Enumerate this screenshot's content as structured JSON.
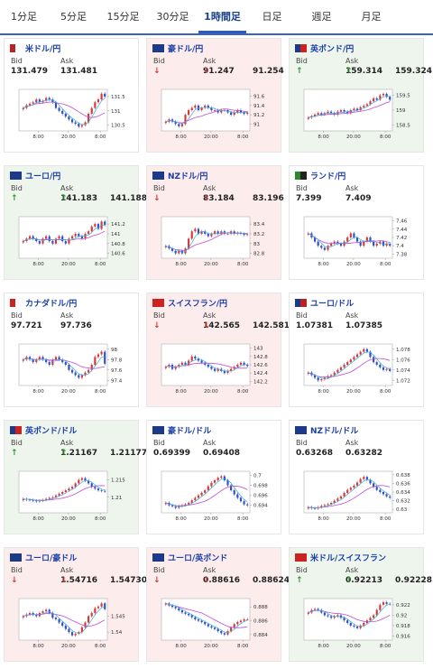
{
  "tabs": [
    {
      "label": "1分足",
      "active": false
    },
    {
      "label": "5分足",
      "active": false
    },
    {
      "label": "15分足",
      "active": false
    },
    {
      "label": "30分足",
      "active": false
    },
    {
      "label": "1時間足",
      "active": true
    },
    {
      "label": "日足",
      "active": false
    },
    {
      "label": "週足",
      "active": false
    },
    {
      "label": "月足",
      "active": false
    }
  ],
  "labels": {
    "bid": "Bid",
    "ask": "Ask"
  },
  "colors": {
    "up": "#2a9a2a",
    "down": "#d23a3a",
    "up_bg": "#eef5ec",
    "down_bg": "#fdecec",
    "link": "#1a3fa8",
    "ma": "#c04ad6",
    "ema": "#3aaed8",
    "bull": "#d23a3a",
    "bear": "#2f4fc9"
  },
  "pairs": [
    {
      "name": "米ドル/円",
      "bid": "131.479",
      "ask": "131.481",
      "dir": "flat",
      "flags": [
        "#b22",
        "#fff"
      ],
      "chart_data": {
        "type": "candlestick",
        "ticks": [
          "131.5",
          "131",
          "130.5"
        ],
        "ylim": [
          130.3,
          131.75
        ],
        "xticks": [
          "8:00",
          "20:00",
          "8:00"
        ],
        "closes": [
          131.1,
          131.2,
          131.25,
          131.3,
          131.4,
          131.3,
          131.35,
          131.45,
          131.4,
          131.3,
          131.1,
          131.0,
          130.9,
          130.8,
          130.7,
          130.6,
          130.55,
          130.45,
          130.5,
          130.6,
          130.9,
          131.1,
          131.3,
          131.4,
          131.6,
          131.5
        ]
      }
    },
    {
      "name": "豪ドル/円",
      "bid": "91.247",
      "ask": "91.254",
      "dir": "down",
      "flags": [
        "#1b3a8a",
        "#1b3a8a"
      ],
      "chart_data": {
        "type": "candlestick",
        "ticks": [
          "91.6",
          "91.4",
          "91.2",
          "91"
        ],
        "ylim": [
          90.85,
          91.75
        ],
        "xticks": [
          "8:00",
          "20:00",
          "8:00"
        ],
        "closes": [
          91.05,
          91.1,
          91.05,
          91.0,
          90.95,
          91.0,
          91.2,
          91.3,
          91.35,
          91.4,
          91.3,
          91.35,
          91.4,
          91.35,
          91.3,
          91.3,
          91.25,
          91.3,
          91.3,
          91.25,
          91.2,
          91.25,
          91.3,
          91.25,
          91.22,
          91.25
        ]
      }
    },
    {
      "name": "英ポンド/円",
      "bid": "159.314",
      "ask": "159.324",
      "dir": "up",
      "flags": [
        "#1b3a8a",
        "#c22"
      ],
      "chart_data": {
        "type": "candlestick",
        "ticks": [
          "159.5",
          "159",
          "158.5"
        ],
        "ylim": [
          158.3,
          159.7
        ],
        "xticks": [
          "8:00",
          "20:00",
          "8:00"
        ],
        "closes": [
          158.75,
          158.8,
          158.85,
          158.9,
          158.85,
          158.9,
          158.95,
          158.9,
          158.85,
          158.95,
          159.0,
          158.95,
          158.9,
          159.0,
          159.05,
          159.0,
          159.1,
          159.15,
          159.2,
          159.3,
          159.4,
          159.35,
          159.5,
          159.55,
          159.45,
          159.35
        ]
      }
    },
    {
      "name": "ユーロ/円",
      "bid": "141.183",
      "ask": "141.188",
      "dir": "up",
      "flags": [
        "#1b3a8a",
        "#1b3a8a"
      ],
      "chart_data": {
        "type": "candlestick",
        "ticks": [
          "141.2",
          "141",
          "140.8",
          "140.6"
        ],
        "ylim": [
          140.5,
          141.35
        ],
        "xticks": [
          "8:00",
          "20:00",
          "8:00"
        ],
        "closes": [
          140.85,
          140.9,
          140.95,
          140.9,
          140.85,
          140.8,
          140.9,
          140.95,
          140.85,
          140.8,
          140.9,
          140.95,
          140.85,
          140.8,
          140.9,
          140.95,
          141.0,
          140.95,
          140.9,
          141.0,
          141.05,
          141.15,
          141.2,
          141.1,
          141.25,
          141.18
        ]
      }
    },
    {
      "name": "NZドル/円",
      "bid": "83.184",
      "ask": "83.196",
      "dir": "down",
      "flags": [
        "#1b3a8a",
        "#1b3a8a"
      ],
      "chart_data": {
        "type": "candlestick",
        "ticks": [
          "83.4",
          "83.2",
          "83",
          "82.8"
        ],
        "ylim": [
          82.7,
          83.55
        ],
        "xticks": [
          "8:00",
          "20:00",
          "8:00"
        ],
        "closes": [
          82.95,
          82.9,
          82.85,
          82.8,
          82.85,
          82.8,
          82.9,
          83.1,
          83.25,
          83.3,
          83.2,
          83.25,
          83.2,
          83.15,
          83.2,
          83.25,
          83.2,
          83.25,
          83.2,
          83.2,
          83.25,
          83.2,
          83.22,
          83.2,
          83.18,
          83.19
        ]
      }
    },
    {
      "name": "ランド/円",
      "bid": "7.399",
      "ask": "7.409",
      "dir": "flat",
      "flags": [
        "#2a8a2a",
        "#222"
      ],
      "chart_data": {
        "type": "candlestick",
        "ticks": [
          "7.46",
          "7.44",
          "7.42",
          "7.4",
          "7.38"
        ],
        "ylim": [
          7.37,
          7.47
        ],
        "xticks": [
          "8:00",
          "20:00",
          "8:00"
        ],
        "closes": [
          7.43,
          7.42,
          7.41,
          7.4,
          7.395,
          7.39,
          7.4,
          7.405,
          7.41,
          7.405,
          7.4,
          7.41,
          7.42,
          7.43,
          7.42,
          7.41,
          7.4,
          7.41,
          7.42,
          7.41,
          7.4,
          7.405,
          7.41,
          7.4,
          7.405,
          7.4
        ]
      }
    },
    {
      "name": "カナダドル/円",
      "bid": "97.721",
      "ask": "97.736",
      "dir": "flat",
      "flags": [
        "#c22",
        "#fff"
      ],
      "chart_data": {
        "type": "candlestick",
        "ticks": [
          "98",
          "97.8",
          "97.6",
          "97.4"
        ],
        "ylim": [
          97.3,
          98.1
        ],
        "xticks": [
          "8:00",
          "20:00",
          "8:00"
        ],
        "closes": [
          97.8,
          97.85,
          97.8,
          97.75,
          97.8,
          97.85,
          97.8,
          97.75,
          97.7,
          97.8,
          97.85,
          97.8,
          97.75,
          97.7,
          97.6,
          97.55,
          97.5,
          97.45,
          97.5,
          97.55,
          97.6,
          97.7,
          97.85,
          97.9,
          97.95,
          97.72
        ]
      }
    },
    {
      "name": "スイスフラン/円",
      "bid": "142.565",
      "ask": "142.581",
      "dir": "down",
      "flags": [
        "#c22",
        "#c22"
      ],
      "chart_data": {
        "type": "candlestick",
        "ticks": [
          "143",
          "142.8",
          "142.6",
          "142.4",
          "142.2"
        ],
        "ylim": [
          142.1,
          143.1
        ],
        "xticks": [
          "8:00",
          "20:00",
          "8:00"
        ],
        "closes": [
          142.55,
          142.6,
          142.5,
          142.55,
          142.6,
          142.65,
          142.6,
          142.7,
          142.8,
          142.75,
          142.7,
          142.65,
          142.6,
          142.55,
          142.5,
          142.45,
          142.5,
          142.45,
          142.4,
          142.45,
          142.5,
          142.55,
          142.6,
          142.65,
          142.6,
          142.57
        ]
      }
    },
    {
      "name": "ユーロ/ドル",
      "bid": "1.07381",
      "ask": "1.07385",
      "dir": "flat",
      "flags": [
        "#1b3a8a",
        "#b22"
      ],
      "chart_data": {
        "type": "candlestick",
        "ticks": [
          "1.078",
          "1.076",
          "1.074",
          "1.072"
        ],
        "ylim": [
          1.071,
          1.079
        ],
        "xticks": [
          "8:00",
          "20:00",
          "8:00"
        ],
        "closes": [
          1.0735,
          1.073,
          1.0725,
          1.072,
          1.0722,
          1.0725,
          1.0728,
          1.073,
          1.0735,
          1.074,
          1.0745,
          1.075,
          1.0755,
          1.076,
          1.0765,
          1.077,
          1.0775,
          1.078,
          1.0775,
          1.0765,
          1.0755,
          1.075,
          1.0745,
          1.074,
          1.0742,
          1.0738
        ]
      }
    },
    {
      "name": "英ポンド/ドル",
      "bid": "1.21167",
      "ask": "1.21177",
      "dir": "up",
      "flags": [
        "#1b3a8a",
        "#c22"
      ],
      "chart_data": {
        "type": "candlestick",
        "ticks": [
          "1.215",
          "1.21"
        ],
        "ylim": [
          1.2055,
          1.2175
        ],
        "xticks": [
          "8:00",
          "20:00",
          "8:00"
        ],
        "closes": [
          1.2095,
          1.2093,
          1.2092,
          1.209,
          1.2088,
          1.209,
          1.2092,
          1.2095,
          1.2098,
          1.21,
          1.2105,
          1.211,
          1.2115,
          1.212,
          1.2125,
          1.213,
          1.214,
          1.215,
          1.2155,
          1.2148,
          1.214,
          1.213,
          1.2125,
          1.212,
          1.2118,
          1.2117
        ]
      }
    },
    {
      "name": "豪ドル/ドル",
      "bid": "0.69399",
      "ask": "0.69408",
      "dir": "flat",
      "flags": [
        "#1b3a8a",
        "#1b3a8a"
      ],
      "chart_data": {
        "type": "candlestick",
        "ticks": [
          "0.7",
          "0.698",
          "0.696",
          "0.694"
        ],
        "ylim": [
          0.6925,
          0.7008
        ],
        "xticks": [
          "8:00",
          "20:00",
          "8:00"
        ],
        "closes": [
          0.6945,
          0.694,
          0.6938,
          0.6935,
          0.6938,
          0.694,
          0.6942,
          0.6945,
          0.695,
          0.6955,
          0.696,
          0.6965,
          0.697,
          0.6978,
          0.6985,
          0.699,
          0.6995,
          0.6998,
          0.699,
          0.698,
          0.697,
          0.6962,
          0.6955,
          0.6948,
          0.6942,
          0.694
        ]
      }
    },
    {
      "name": "NZドル/ドル",
      "bid": "0.63268",
      "ask": "0.63282",
      "dir": "flat",
      "flags": [
        "#1b3a8a",
        "#1b3a8a"
      ],
      "chart_data": {
        "type": "candlestick",
        "ticks": [
          "0.638",
          "0.636",
          "0.634",
          "0.632",
          "0.63"
        ],
        "ylim": [
          0.6292,
          0.6388
        ],
        "xticks": [
          "8:00",
          "20:00",
          "8:00"
        ],
        "closes": [
          0.6305,
          0.6303,
          0.6302,
          0.6305,
          0.6308,
          0.631,
          0.6312,
          0.6315,
          0.632,
          0.6325,
          0.633,
          0.6338,
          0.6345,
          0.635,
          0.6355,
          0.6362,
          0.637,
          0.6375,
          0.6368,
          0.636,
          0.6352,
          0.6345,
          0.634,
          0.6335,
          0.633,
          0.6327
        ]
      }
    },
    {
      "name": "ユーロ/豪ドル",
      "bid": "1.54716",
      "ask": "1.54730",
      "dir": "down",
      "flags": [
        "#1b3a8a",
        "#1b3a8a"
      ],
      "chart_data": {
        "type": "candlestick",
        "ticks": [
          "1.545",
          "1.54"
        ],
        "ylim": [
          1.5375,
          1.5505
        ],
        "xticks": [
          "8:00",
          "20:00",
          "8:00"
        ],
        "closes": [
          1.545,
          1.5455,
          1.546,
          1.5455,
          1.545,
          1.546,
          1.5465,
          1.547,
          1.546,
          1.5445,
          1.544,
          1.543,
          1.542,
          1.541,
          1.54,
          1.539,
          1.5395,
          1.54,
          1.5415,
          1.543,
          1.545,
          1.546,
          1.5475,
          1.548,
          1.549,
          1.5472
        ]
      }
    },
    {
      "name": "ユーロ/英ポンド",
      "bid": "0.88616",
      "ask": "0.88624",
      "dir": "down",
      "flags": [
        "#1b3a8a",
        "#1b3a8a"
      ],
      "chart_data": {
        "type": "candlestick",
        "ticks": [
          "0.888",
          "0.886",
          "0.884"
        ],
        "ylim": [
          0.8832,
          0.8892
        ],
        "xticks": [
          "8:00",
          "20:00",
          "8:00"
        ],
        "closes": [
          0.8885,
          0.8882,
          0.888,
          0.8878,
          0.8875,
          0.8872,
          0.887,
          0.8868,
          0.8865,
          0.8862,
          0.886,
          0.8858,
          0.8855,
          0.8852,
          0.885,
          0.8848,
          0.8845,
          0.8842,
          0.884,
          0.8845,
          0.885,
          0.8855,
          0.8858,
          0.886,
          0.8862,
          0.8862
        ]
      }
    },
    {
      "name": "米ドル/スイスフラン",
      "bid": "0.92213",
      "ask": "0.92228",
      "dir": "up",
      "flags": [
        "#c22",
        "#c22"
      ],
      "chart_data": {
        "type": "candlestick",
        "ticks": [
          "0.922",
          "0.92",
          "0.918",
          "0.916"
        ],
        "ylim": [
          0.9152,
          0.9232
        ],
        "xticks": [
          "8:00",
          "20:00",
          "8:00"
        ],
        "closes": [
          0.9205,
          0.921,
          0.9212,
          0.921,
          0.9205,
          0.92,
          0.9198,
          0.9195,
          0.9198,
          0.92,
          0.9195,
          0.919,
          0.9185,
          0.918,
          0.9178,
          0.9175,
          0.918,
          0.9185,
          0.919,
          0.9195,
          0.92,
          0.921,
          0.922,
          0.9225,
          0.9222,
          0.9221
        ]
      }
    }
  ]
}
